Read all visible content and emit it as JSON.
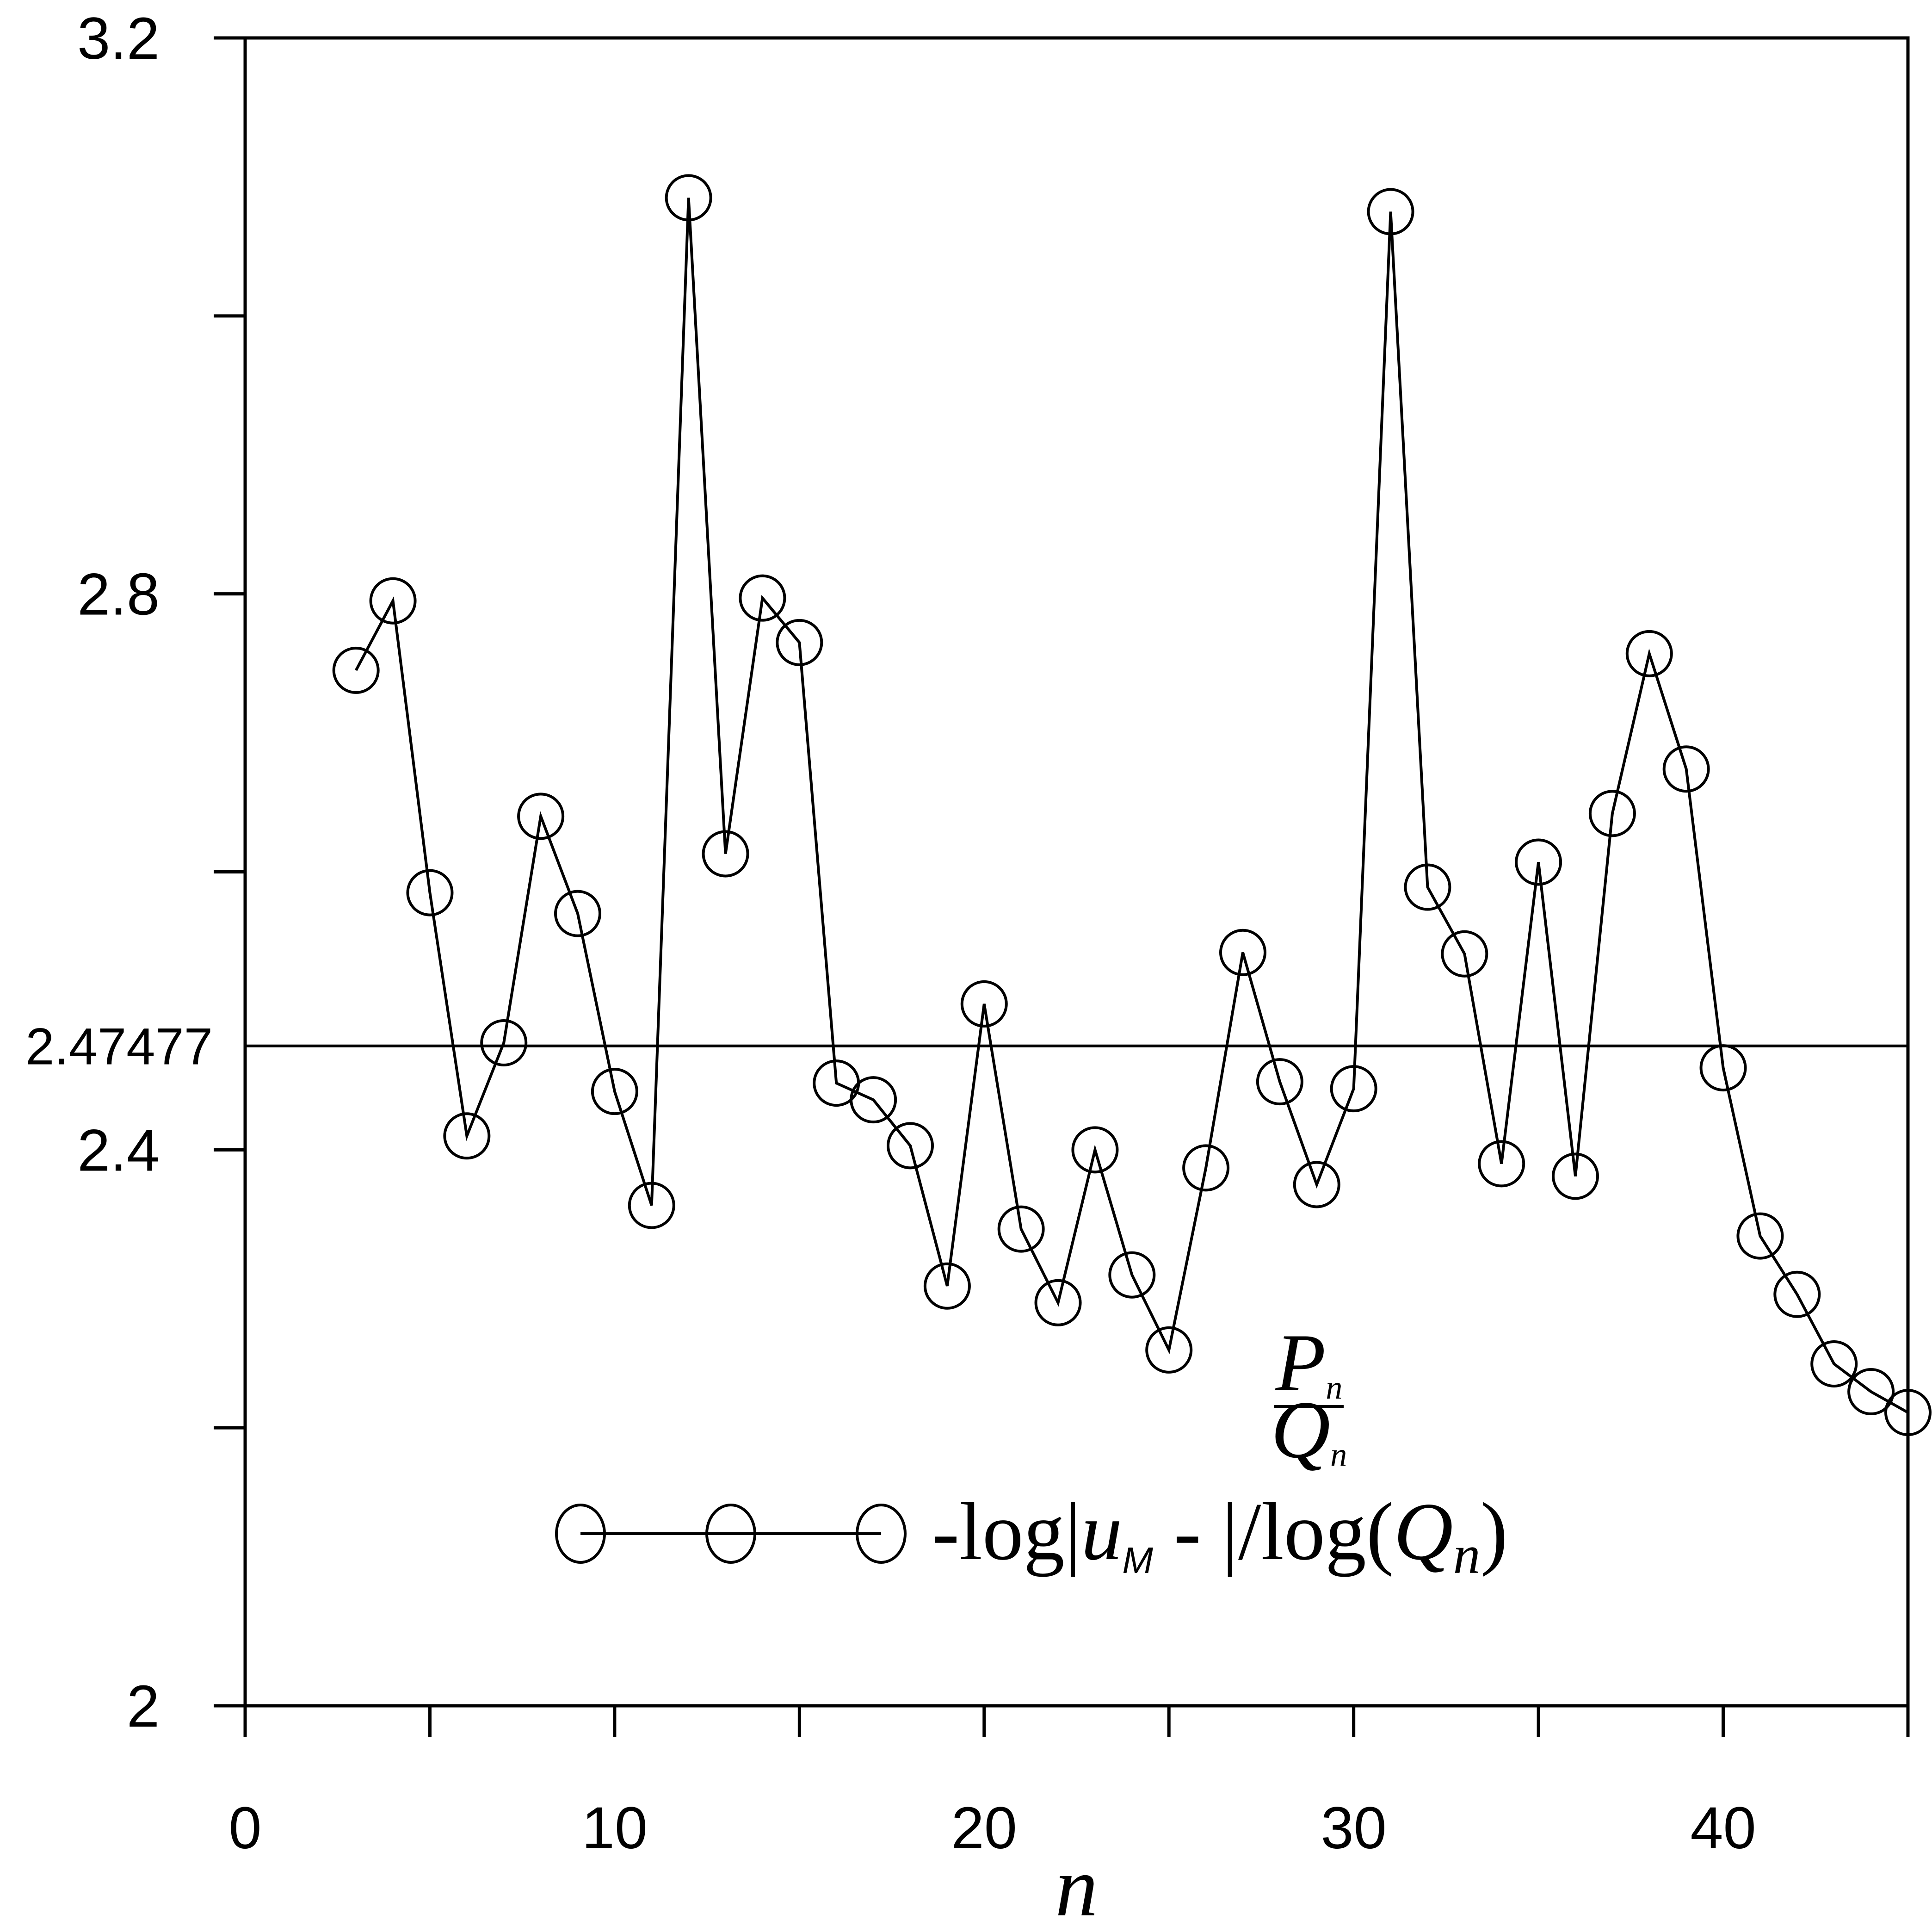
{
  "chart_data": {
    "type": "line",
    "xlabel": "n",
    "ylabel": "",
    "xlim": [
      0,
      45
    ],
    "ylim": [
      2.0,
      3.2
    ],
    "x_ticks": [
      0,
      5,
      10,
      15,
      20,
      25,
      30,
      35,
      40,
      45
    ],
    "x_tick_labels": [
      "0",
      "10",
      "20",
      "30",
      "40"
    ],
    "x_tick_label_values": [
      0,
      10,
      20,
      30,
      40
    ],
    "y_ticks": [
      2.0,
      2.2,
      2.4,
      2.6,
      2.8,
      3.0,
      3.2
    ],
    "y_tick_labels": [
      "2",
      "2.4",
      "2.8",
      "3.2"
    ],
    "y_tick_label_values": [
      2.0,
      2.4,
      2.8,
      3.2
    ],
    "reference_line": {
      "value": 2.47477,
      "label": "2.47477"
    },
    "legend": {
      "placement": "lower-center"
    },
    "series": [
      {
        "name": "-log|u_M - P_n/Q_n|/log(Q_n)",
        "marker": "circle",
        "x": [
          3,
          4,
          5,
          6,
          7,
          8,
          9,
          10,
          11,
          12,
          13,
          14,
          15,
          16,
          17,
          18,
          19,
          20,
          21,
          22,
          23,
          24,
          25,
          26,
          27,
          28,
          29,
          30,
          31,
          32,
          33,
          34,
          35,
          36,
          37,
          38,
          39,
          40,
          41,
          42,
          43,
          44,
          45
        ],
        "values": [
          2.745,
          2.795,
          2.585,
          2.41,
          2.477,
          2.64,
          2.57,
          2.442,
          2.36,
          3.085,
          2.613,
          2.797,
          2.765,
          2.448,
          2.436,
          2.403,
          2.302,
          2.505,
          2.343,
          2.29,
          2.4,
          2.31,
          2.256,
          2.387,
          2.542,
          2.449,
          2.375,
          2.444,
          3.075,
          2.589,
          2.541,
          2.39,
          2.607,
          2.381,
          2.642,
          2.757,
          2.674,
          2.459,
          2.338,
          2.296,
          2.246,
          2.226,
          2.211
        ]
      }
    ],
    "legend_parts": {
      "prefix": "-log|",
      "u": "u",
      "u_sub": "M",
      "minus": " - ",
      "frac_num": "P",
      "frac_num_sub": "n",
      "frac_den": "Q",
      "frac_den_sub": "n",
      "after_frac": "|/log(",
      "q": "Q",
      "q_sub": "n",
      "close": ")"
    }
  }
}
